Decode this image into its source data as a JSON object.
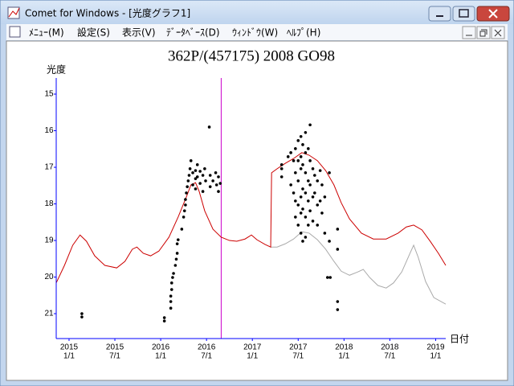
{
  "window": {
    "title": "Comet for Windows - [光度グラフ1]",
    "menu": [
      "ﾒﾆｭｰ(M)",
      "設定(S)",
      "表示(V)",
      "ﾃﾞｰﾀﾍﾞｰｽ(D)",
      "ｳｨﾝﾄﾞｳ(W)",
      "ﾍﾙﾌﾟ(H)"
    ]
  },
  "chart_data": {
    "type": "line",
    "title": "362P/(457175) 2008 GO98",
    "ylabel": "光度",
    "xlabel": "日付",
    "xlim": [
      2014.86,
      2019.11
    ],
    "ylim": [
      21.68,
      14.56
    ],
    "yticks": [
      15,
      16,
      17,
      18,
      19,
      20,
      21
    ],
    "xticks": [
      {
        "value": 2015,
        "label": "2015",
        "date": "1/1"
      },
      {
        "value": 2015.5,
        "label": "2015",
        "date": "7/1"
      },
      {
        "value": 2016,
        "label": "2016",
        "date": "1/1"
      },
      {
        "value": 2016.5,
        "label": "2016",
        "date": "7/1"
      },
      {
        "value": 2017,
        "label": "2017",
        "date": "1/1"
      },
      {
        "value": 2017.5,
        "label": "2017",
        "date": "7/1"
      },
      {
        "value": 2018,
        "label": "2018",
        "date": "1/1"
      },
      {
        "value": 2018.5,
        "label": "2018",
        "date": "7/1"
      },
      {
        "value": 2019,
        "label": "2019",
        "date": "1/1"
      }
    ],
    "axis_color": "#0000ff",
    "marker_x": 2016.66,
    "marker_color": "#cc00cc",
    "series": [
      {
        "type": "line",
        "color": "#aaaaaa",
        "x": [
          2017.2,
          2017.27,
          2017.36,
          2017.45,
          2017.54,
          2017.62,
          2017.71,
          2017.8,
          2017.89,
          2017.97,
          2018.06,
          2018.15,
          2018.21,
          2018.28,
          2018.37,
          2018.46,
          2018.54,
          2018.63,
          2018.72,
          2018.76,
          2018.81,
          2018.89,
          2018.98,
          2019.11
        ],
        "values": [
          19.18,
          19.18,
          19.09,
          18.96,
          18.76,
          18.8,
          18.98,
          19.24,
          19.57,
          19.84,
          19.95,
          19.86,
          19.79,
          20.01,
          20.23,
          20.3,
          20.16,
          19.86,
          19.35,
          19.13,
          19.46,
          20.12,
          20.56,
          20.74
        ]
      },
      {
        "type": "line",
        "color": "#cc0000",
        "x": [
          2014.86,
          2014.95,
          2015.04,
          2015.12,
          2015.19,
          2015.28,
          2015.39,
          2015.52,
          2015.61,
          2015.69,
          2015.74,
          2015.81,
          2015.89,
          2015.98,
          2016.09,
          2016.19,
          2016.28,
          2016.33,
          2016.38,
          2016.42,
          2016.48,
          2016.57,
          2016.66,
          2016.75,
          2016.83,
          2016.92,
          2016.99,
          2017.05,
          2017.14,
          2017.2,
          2017.21,
          2017.27,
          2017.36,
          2017.45,
          2017.54,
          2017.62,
          2017.71,
          2017.8,
          2017.89,
          2017.97,
          2018.06,
          2018.19,
          2018.32,
          2018.46,
          2018.59,
          2018.68,
          2018.76,
          2018.85,
          2018.94,
          2019.03,
          2019.11
        ],
        "values": [
          20.16,
          19.68,
          19.13,
          18.85,
          19.02,
          19.42,
          19.68,
          19.75,
          19.57,
          19.24,
          19.18,
          19.35,
          19.42,
          19.29,
          18.91,
          18.36,
          17.81,
          17.48,
          17.42,
          17.66,
          18.19,
          18.69,
          18.91,
          19.0,
          19.02,
          18.96,
          18.85,
          18.98,
          19.11,
          19.18,
          17.15,
          17.04,
          16.89,
          16.76,
          16.6,
          16.67,
          16.82,
          17.09,
          17.48,
          17.97,
          18.41,
          18.8,
          18.96,
          18.96,
          18.8,
          18.63,
          18.58,
          18.71,
          19.02,
          19.35,
          19.68
        ]
      },
      {
        "type": "scatter",
        "color": "#000000",
        "x": [
          2015.14,
          2015.14,
          2016.04,
          2016.04,
          2016.11,
          2016.11,
          2016.11,
          2016.12,
          2016.12,
          2016.13,
          2016.14,
          2016.16,
          2016.17,
          2016.18,
          2016.18,
          2016.19,
          2016.23,
          2016.25,
          2016.26,
          2016.27,
          2016.27,
          2016.28,
          2016.29,
          2016.3,
          2016.31,
          2016.32,
          2016.33,
          2016.35,
          2016.35,
          2016.38,
          2016.38,
          2016.38,
          2016.4,
          2016.4,
          2016.43,
          2016.43,
          2016.46,
          2016.46,
          2016.48,
          2016.49,
          2016.53,
          2016.54,
          2016.54,
          2016.57,
          2016.6,
          2016.61,
          2016.63,
          2016.63,
          2016.65,
          2017.32,
          2017.32,
          2017.32,
          2017.39,
          2017.42,
          2017.42,
          2017.45,
          2017.45,
          2017.47,
          2017.47,
          2017.47,
          2017.47,
          2017.5,
          2017.5,
          2017.5,
          2017.5,
          2017.5,
          2017.53,
          2017.53,
          2017.53,
          2017.53,
          2017.53,
          2017.53,
          2017.55,
          2017.55,
          2017.55,
          2017.55,
          2017.55,
          2017.58,
          2017.58,
          2017.58,
          2017.58,
          2017.58,
          2017.58,
          2017.61,
          2017.61,
          2017.61,
          2017.61,
          2017.63,
          2017.63,
          2017.63,
          2017.63,
          2017.66,
          2017.66,
          2017.66,
          2017.68,
          2017.68,
          2017.71,
          2017.71,
          2017.71,
          2017.74,
          2017.74,
          2017.76,
          2017.76,
          2017.79,
          2017.79,
          2017.82,
          2017.85,
          2017.84,
          2017.84,
          2017.93,
          2017.93,
          2017.93,
          2017.93
        ],
        "values": [
          21.0,
          21.09,
          21.11,
          21.2,
          20.67,
          20.52,
          20.85,
          20.34,
          20.16,
          20.01,
          19.9,
          19.68,
          19.51,
          19.35,
          19.09,
          18.98,
          18.69,
          18.36,
          18.19,
          18.03,
          17.88,
          17.7,
          17.53,
          17.37,
          17.22,
          17.04,
          16.82,
          17.15,
          17.48,
          17.09,
          17.31,
          17.59,
          16.93,
          17.26,
          17.11,
          17.44,
          17.22,
          17.66,
          17.04,
          17.37,
          15.9,
          17.22,
          17.53,
          17.37,
          17.15,
          17.48,
          17.26,
          17.66,
          17.44,
          16.93,
          17.04,
          17.26,
          16.71,
          16.6,
          17.48,
          16.82,
          17.7,
          16.49,
          17.15,
          17.92,
          18.36,
          16.27,
          16.82,
          17.37,
          18.03,
          18.58,
          16.16,
          16.71,
          17.04,
          17.81,
          18.25,
          18.8,
          16.38,
          16.93,
          17.59,
          18.14,
          19.02,
          16.05,
          16.6,
          17.15,
          17.7,
          18.36,
          18.91,
          16.49,
          17.37,
          17.92,
          18.58,
          15.84,
          16.82,
          17.48,
          18.19,
          17.04,
          17.81,
          18.47,
          17.22,
          17.7,
          17.37,
          18.03,
          18.58,
          17.09,
          17.92,
          17.48,
          18.25,
          17.81,
          18.8,
          20.01,
          20.01,
          17.15,
          19.02,
          18.69,
          19.24,
          20.67,
          20.89
        ]
      }
    ]
  }
}
